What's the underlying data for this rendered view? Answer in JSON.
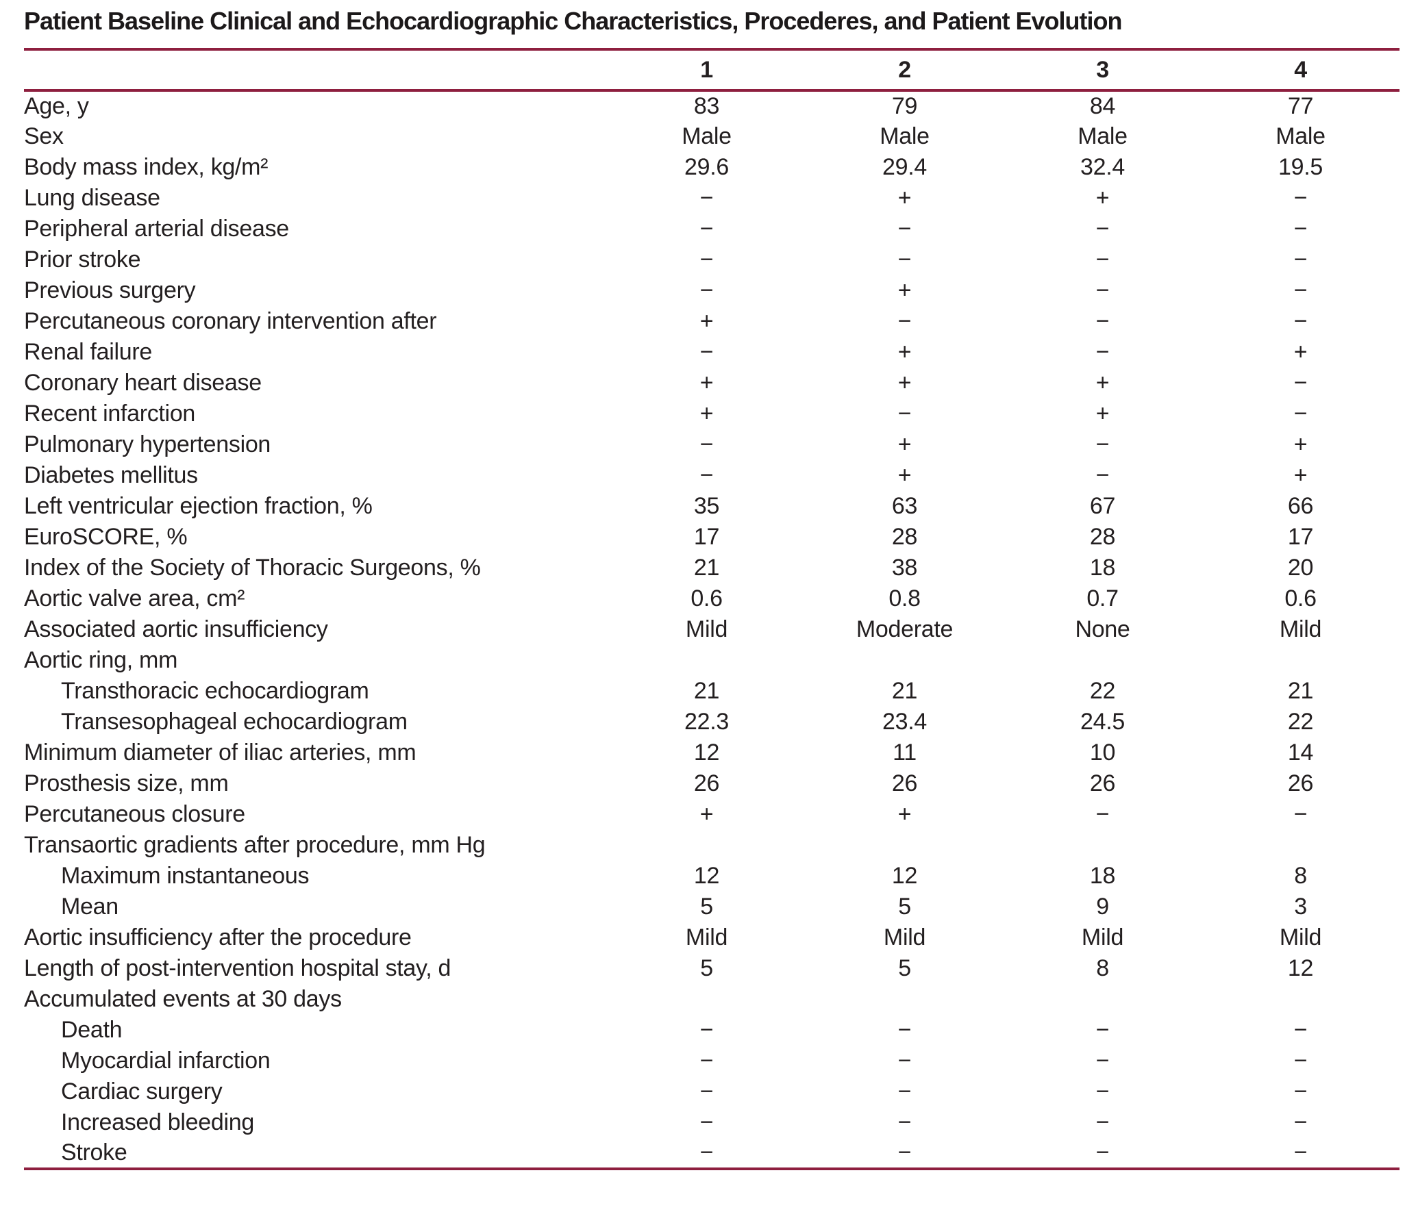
{
  "title": "Patient Baseline Clinical and Echocardiographic Characteristics, Procederes, and Patient Evolution",
  "colors": {
    "rule": "#8e1f3f",
    "text": "#231f20"
  },
  "columns": [
    "1",
    "2",
    "3",
    "4"
  ],
  "table": {
    "rows": [
      {
        "label": "Age, y",
        "indent": false,
        "values": [
          "83",
          "79",
          "84",
          "77"
        ]
      },
      {
        "label": "Sex",
        "indent": false,
        "values": [
          "Male",
          "Male",
          "Male",
          "Male"
        ]
      },
      {
        "label": "Body mass index, kg/m²",
        "indent": false,
        "values": [
          "29.6",
          "29.4",
          "32.4",
          "19.5"
        ]
      },
      {
        "label": "Lung disease",
        "indent": false,
        "values": [
          "−",
          "+",
          "+",
          "−"
        ]
      },
      {
        "label": "Peripheral arterial disease",
        "indent": false,
        "values": [
          "−",
          "−",
          "−",
          "−"
        ]
      },
      {
        "label": "Prior stroke",
        "indent": false,
        "values": [
          "−",
          "−",
          "−",
          "−"
        ]
      },
      {
        "label": "Previous surgery",
        "indent": false,
        "values": [
          "−",
          "+",
          "−",
          "−"
        ]
      },
      {
        "label": "Percutaneous coronary intervention after",
        "indent": false,
        "values": [
          "+",
          "−",
          "−",
          "−"
        ]
      },
      {
        "label": "Renal failure",
        "indent": false,
        "values": [
          "−",
          "+",
          "−",
          "+"
        ]
      },
      {
        "label": "Coronary heart disease",
        "indent": false,
        "values": [
          "+",
          "+",
          "+",
          "−"
        ]
      },
      {
        "label": "Recent infarction",
        "indent": false,
        "values": [
          "+",
          "−",
          "+",
          "−"
        ]
      },
      {
        "label": "Pulmonary hypertension",
        "indent": false,
        "values": [
          "−",
          "+",
          "−",
          "+"
        ]
      },
      {
        "label": "Diabetes mellitus",
        "indent": false,
        "values": [
          "−",
          "+",
          "−",
          "+"
        ]
      },
      {
        "label": "Left ventricular ejection fraction, %",
        "indent": false,
        "values": [
          "35",
          "63",
          "67",
          "66"
        ]
      },
      {
        "label": "EuroSCORE, %",
        "indent": false,
        "values": [
          "17",
          "28",
          "28",
          "17"
        ]
      },
      {
        "label": "Index of the Society of Thoracic Surgeons, %",
        "indent": false,
        "values": [
          "21",
          "38",
          "18",
          "20"
        ]
      },
      {
        "label": "Aortic valve area, cm²",
        "indent": false,
        "values": [
          "0.6",
          "0.8",
          "0.7",
          "0.6"
        ]
      },
      {
        "label": "Associated aortic insufficiency",
        "indent": false,
        "values": [
          "Mild",
          "Moderate",
          "None",
          "Mild"
        ]
      },
      {
        "label": "Aortic ring, mm",
        "indent": false,
        "values": [
          "",
          "",
          "",
          ""
        ]
      },
      {
        "label": "Transthoracic echocardiogram",
        "indent": true,
        "values": [
          "21",
          "21",
          "22",
          "21"
        ]
      },
      {
        "label": "Transesophageal echocardiogram",
        "indent": true,
        "values": [
          "22.3",
          "23.4",
          "24.5",
          "22"
        ]
      },
      {
        "label": "Minimum diameter of iliac arteries, mm",
        "indent": false,
        "values": [
          "12",
          "11",
          "10",
          "14"
        ]
      },
      {
        "label": "Prosthesis size, mm",
        "indent": false,
        "values": [
          "26",
          "26",
          "26",
          "26"
        ]
      },
      {
        "label": "Percutaneous closure",
        "indent": false,
        "values": [
          "+",
          "+",
          "−",
          "−"
        ]
      },
      {
        "label": "Transaortic gradients after procedure, mm Hg",
        "indent": false,
        "values": [
          "",
          "",
          "",
          ""
        ]
      },
      {
        "label": "Maximum instantaneous",
        "indent": true,
        "values": [
          "12",
          "12",
          "18",
          "8"
        ]
      },
      {
        "label": "Mean",
        "indent": true,
        "values": [
          "5",
          "5",
          "9",
          "3"
        ]
      },
      {
        "label": "Aortic insufficiency after the procedure",
        "indent": false,
        "values": [
          "Mild",
          "Mild",
          "Mild",
          "Mild"
        ]
      },
      {
        "label": "Length of post-intervention hospital stay, d",
        "indent": false,
        "values": [
          "5",
          "5",
          "8",
          "12"
        ]
      },
      {
        "label": "Accumulated events at 30 days",
        "indent": false,
        "values": [
          "",
          "",
          "",
          ""
        ]
      },
      {
        "label": "Death",
        "indent": true,
        "values": [
          "−",
          "−",
          "−",
          "−"
        ]
      },
      {
        "label": "Myocardial infarction",
        "indent": true,
        "values": [
          "−",
          "−",
          "−",
          "−"
        ]
      },
      {
        "label": "Cardiac surgery",
        "indent": true,
        "values": [
          "−",
          "−",
          "−",
          "−"
        ]
      },
      {
        "label": "Increased bleeding",
        "indent": true,
        "values": [
          "−",
          "−",
          "−",
          "−"
        ]
      },
      {
        "label": "Stroke",
        "indent": true,
        "values": [
          "−",
          "−",
          "−",
          "−"
        ]
      }
    ]
  }
}
